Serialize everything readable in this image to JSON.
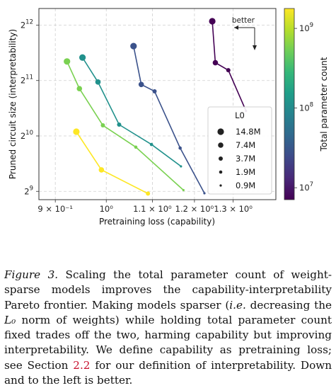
{
  "chart_data": {
    "type": "scatter",
    "title": "",
    "xlabel": "Pretraining loss (capability)",
    "ylabel": "Pruned circuit size (interpretability)",
    "x_scale": "log",
    "y_scale": "log2",
    "xlim": [
      0.87,
      1.42
    ],
    "ylim_log2": [
      8.85,
      12.3
    ],
    "grid": true,
    "x_ticks": [
      {
        "value": 0.9,
        "label": "9 × 10⁻¹"
      },
      {
        "value": 1.0,
        "label": "10⁰"
      },
      {
        "value": 1.1,
        "label": "1.1 × 10⁰"
      },
      {
        "value": 1.2,
        "label": "1.2 × 10⁰"
      },
      {
        "value": 1.3,
        "label": "1.3 × 10⁰"
      }
    ],
    "y_ticks": [
      {
        "value": 512,
        "base": "2",
        "exp": "9"
      },
      {
        "value": 1024,
        "base": "2",
        "exp": "10"
      },
      {
        "value": 2048,
        "base": "2",
        "exp": "11"
      },
      {
        "value": 4096,
        "base": "2",
        "exp": "12"
      }
    ],
    "series": [
      {
        "total_params_log10": 7.05,
        "color": "#440154",
        "points": [
          {
            "x": 1.245,
            "y": 4300,
            "l0": "14.8M"
          },
          {
            "x": 1.253,
            "y": 2560,
            "l0": "7.4M"
          },
          {
            "x": 1.287,
            "y": 2330,
            "l0": "3.7M"
          },
          {
            "x": 1.335,
            "y": 1400,
            "l0": "0.9M"
          }
        ]
      },
      {
        "total_params_log10": 7.75,
        "color": "#3b528b",
        "points": [
          {
            "x": 1.058,
            "y": 3150,
            "l0": "14.8M"
          },
          {
            "x": 1.075,
            "y": 1950,
            "l0": "7.4M"
          },
          {
            "x": 1.105,
            "y": 1790,
            "l0": "3.7M"
          },
          {
            "x": 1.165,
            "y": 880,
            "l0": "1.9M"
          },
          {
            "x": 1.225,
            "y": 500,
            "l0": "0.9M"
          }
        ]
      },
      {
        "total_params_log10": 8.45,
        "color": "#21918c",
        "points": [
          {
            "x": 0.952,
            "y": 2730,
            "l0": "14.8M"
          },
          {
            "x": 0.983,
            "y": 2010,
            "l0": "7.4M"
          },
          {
            "x": 1.027,
            "y": 1180,
            "l0": "3.7M"
          },
          {
            "x": 1.098,
            "y": 920,
            "l0": "1.9M"
          },
          {
            "x": 1.167,
            "y": 700,
            "l0": "0.9M"
          }
        ]
      },
      {
        "total_params_log10": 9.05,
        "color": "#7ad151",
        "points": [
          {
            "x": 0.922,
            "y": 2600,
            "l0": "14.8M"
          },
          {
            "x": 0.946,
            "y": 1850,
            "l0": "7.4M"
          },
          {
            "x": 0.993,
            "y": 1170,
            "l0": "3.7M"
          },
          {
            "x": 1.063,
            "y": 890,
            "l0": "1.9M"
          },
          {
            "x": 1.173,
            "y": 520,
            "l0": "0.9M"
          }
        ]
      },
      {
        "total_params_log10": 9.25,
        "color": "#fde725",
        "points": [
          {
            "x": 0.94,
            "y": 1080,
            "l0": "14.8M"
          },
          {
            "x": 0.99,
            "y": 670,
            "l0": "7.4M"
          },
          {
            "x": 1.09,
            "y": 498,
            "l0": "3.7M"
          }
        ]
      }
    ],
    "legend": {
      "title": "L0",
      "placement": "center-right",
      "entries": [
        {
          "label": "14.8M",
          "size": 4.6
        },
        {
          "label": "7.4M",
          "size": 3.8
        },
        {
          "label": "3.7M",
          "size": 3.0
        },
        {
          "label": "1.9M",
          "size": 2.3
        },
        {
          "label": "0.9M",
          "size": 1.6
        }
      ]
    },
    "colorbar": {
      "label": "Total parameter count",
      "scale": "log",
      "range_log10": [
        6.85,
        9.25
      ],
      "colormap": [
        "#440154",
        "#482878",
        "#3e4989",
        "#31688e",
        "#26828e",
        "#1f9e89",
        "#35b779",
        "#6ece58",
        "#b5de2b",
        "#fde725"
      ],
      "ticks": [
        {
          "value_log10": 7,
          "base": "10",
          "exp": "7"
        },
        {
          "value_log10": 8,
          "base": "10",
          "exp": "8"
        },
        {
          "value_log10": 9,
          "base": "10",
          "exp": "9"
        }
      ]
    },
    "annotation": {
      "text": "better",
      "placement": "top-right",
      "arrows": [
        "left",
        "down"
      ]
    }
  },
  "caption": {
    "figure_label": "Figure 3.",
    "text_1": " Scaling the total parameter count of weight-sparse models improves the capability-interpretability Pareto frontier. Making models sparser (",
    "ie": "i.e.",
    "text_2": " decreasing the ",
    "l0_symbol": "L₀",
    "text_3": " norm of weights) while holding total parameter count fixed trades off the two, harming capability but improving interpretability. We define capability as pretraining loss; see Section ",
    "section_ref": "2.2",
    "text_4": " for our definition of interpretability. Down and to the left is better."
  }
}
